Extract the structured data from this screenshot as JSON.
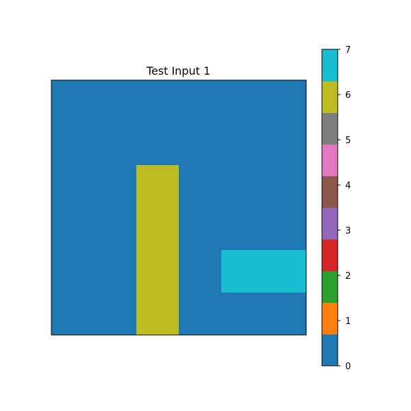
{
  "chart_data": {
    "type": "heatmap",
    "title": "Test Input 1",
    "rows": 6,
    "cols": 6,
    "grid": [
      [
        0,
        0,
        0,
        0,
        0,
        0
      ],
      [
        0,
        0,
        0,
        0,
        0,
        0
      ],
      [
        0,
        0,
        6,
        0,
        0,
        0
      ],
      [
        0,
        0,
        6,
        0,
        0,
        0
      ],
      [
        0,
        0,
        6,
        0,
        7,
        7
      ],
      [
        0,
        0,
        6,
        0,
        0,
        0
      ]
    ],
    "colorbar": {
      "min": 0,
      "max": 7,
      "ticks": [
        "0",
        "1",
        "2",
        "3",
        "4",
        "5",
        "6",
        "7"
      ],
      "colors": [
        "#1f77b4",
        "#ff7f0e",
        "#2ca02c",
        "#d62728",
        "#9467bd",
        "#8c564b",
        "#e377c2",
        "#7f7f7f",
        "#bcbd22",
        "#17becf"
      ]
    },
    "axes_ticks": false,
    "grid_lines": false
  }
}
